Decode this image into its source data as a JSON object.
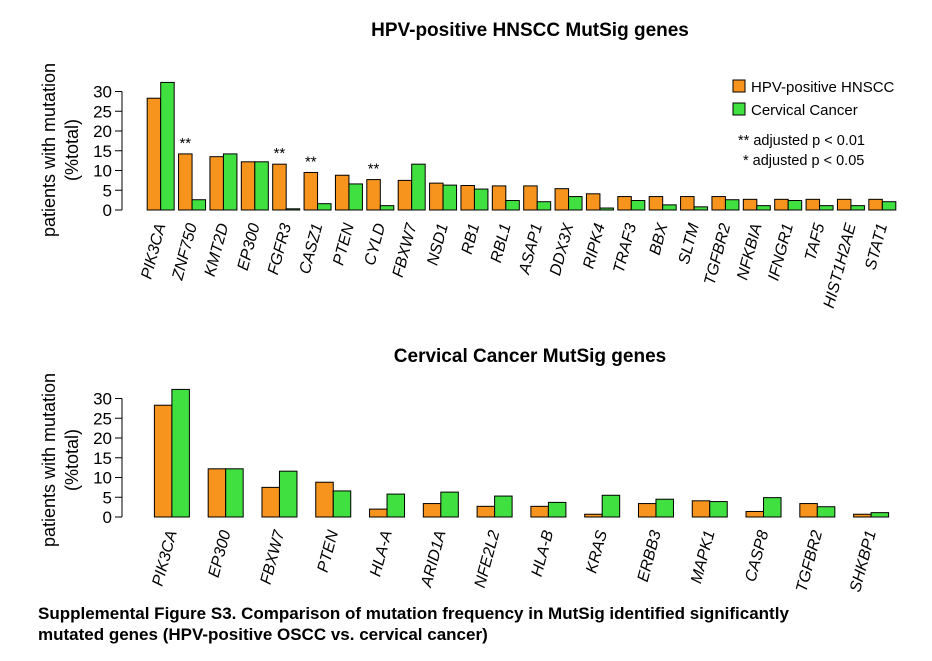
{
  "colors": {
    "hnscc": "#F7941D",
    "cervical": "#3FE03F"
  },
  "legend": {
    "series": [
      "HPV-positive HNSCC",
      "Cervical Cancer"
    ],
    "notes": [
      "** adjusted p < 0.01",
      "* adjusted p < 0.05"
    ]
  },
  "caption": {
    "line1": "Supplemental Figure S3. Comparison of mutation frequency in MutSig identified significantly",
    "line2": "mutated genes (HPV-positive OSCC vs. cervical cancer)"
  },
  "chart_data": [
    {
      "type": "bar",
      "title": "HPV-positive HNSCC MutSig genes",
      "ylabel": "patients with mutation (%total)",
      "ylabel_lines": [
        "patients with mutation",
        "(%total)"
      ],
      "xlabel": "",
      "ylim": [
        0,
        30
      ],
      "yticks": [
        0,
        5,
        10,
        15,
        20,
        25,
        30
      ],
      "categories": [
        "PIK3CA",
        "ZNF750",
        "KMT2D",
        "EP300",
        "FGFR3",
        "CASZ1",
        "PTEN",
        "CYLD",
        "FBXW7",
        "NSD1",
        "RB1",
        "RBL1",
        "ASAP1",
        "DDX3X",
        "RIPK4",
        "TRAF3",
        "BBX",
        "SLTM",
        "TGFBR2",
        "NFKBIA",
        "IFNGR1",
        "TAF5",
        "HIST1H2AE",
        "STAT1"
      ],
      "series": [
        {
          "name": "HPV-positive HNSCC",
          "values": [
            28.3,
            14.2,
            13.5,
            12.2,
            11.6,
            9.5,
            8.8,
            7.7,
            7.5,
            6.8,
            6.2,
            6.1,
            6.1,
            5.4,
            4.1,
            3.4,
            3.4,
            3.4,
            3.4,
            2.7,
            2.7,
            2.7,
            2.7,
            2.7
          ]
        },
        {
          "name": "Cervical Cancer",
          "values": [
            32.3,
            2.6,
            14.2,
            12.2,
            0.3,
            1.6,
            6.6,
            1.1,
            11.6,
            6.3,
            5.3,
            2.4,
            2.1,
            3.4,
            0.5,
            2.4,
            1.3,
            0.8,
            2.6,
            1.1,
            2.4,
            1.1,
            1.1,
            2.1
          ]
        }
      ],
      "annotations": [
        {
          "category": "ZNF750",
          "text": "**"
        },
        {
          "category": "FGFR3",
          "text": "**"
        },
        {
          "category": "CASZ1",
          "text": "**"
        },
        {
          "category": "CYLD",
          "text": "**"
        }
      ],
      "legend_position": "top-right"
    },
    {
      "type": "bar",
      "title": "Cervical Cancer MutSig genes",
      "ylabel": "patients with mutation (%total)",
      "ylabel_lines": [
        "patients with mutation",
        "(%total)"
      ],
      "xlabel": "",
      "ylim": [
        0,
        30
      ],
      "yticks": [
        0,
        5,
        10,
        15,
        20,
        25,
        30
      ],
      "categories": [
        "PIK3CA",
        "EP300",
        "FBXW7",
        "PTEN",
        "HLA-A",
        "ARID1A",
        "NFE2L2",
        "HLA-B",
        "KRAS",
        "ERBB3",
        "MAPK1",
        "CASP8",
        "TGFBR2",
        "SHKBP1"
      ],
      "series": [
        {
          "name": "HPV-positive HNSCC",
          "values": [
            28.3,
            12.2,
            7.5,
            8.8,
            2.0,
            3.4,
            2.7,
            2.7,
            0.7,
            3.4,
            4.1,
            1.4,
            3.4,
            0.7
          ]
        },
        {
          "name": "Cervical Cancer",
          "values": [
            32.3,
            12.2,
            11.6,
            6.6,
            5.8,
            6.3,
            5.3,
            3.7,
            5.5,
            4.5,
            3.9,
            4.9,
            2.6,
            1.1
          ]
        }
      ]
    }
  ]
}
